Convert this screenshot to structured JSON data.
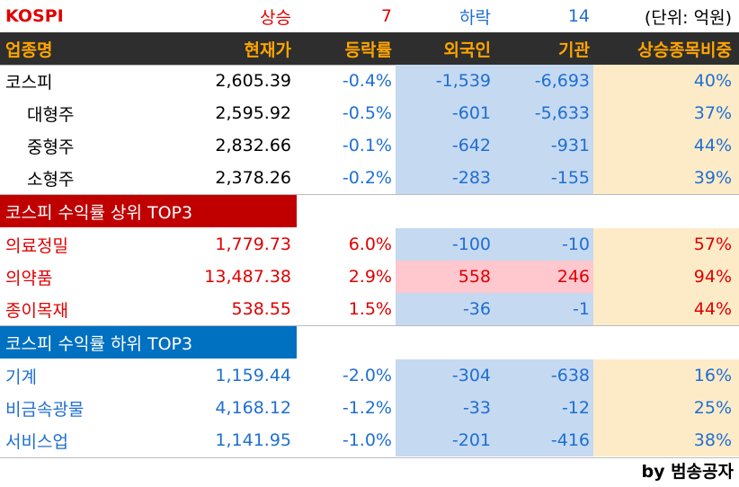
{
  "summary": [
    "KOSPI",
    "상승",
    "7",
    "하락",
    "14",
    "(단위: 억원)"
  ],
  "table": {
    "header": [
      "업종명",
      "현재가",
      "등락률",
      "외국인",
      "기관",
      "상승종목비중"
    ],
    "groups": [
      {
        "rows": [
          [
            "코스피",
            "2,605.39",
            "-0.4%",
            "-1,539",
            "-6,693",
            "40%"
          ],
          [
            "대형주",
            "2,595.92",
            "-0.5%",
            "-601",
            "-5,633",
            "37%"
          ],
          [
            "중형주",
            "2,832.66",
            "-0.1%",
            "-642",
            "-931",
            "44%"
          ],
          [
            "소형주",
            "2,378.26",
            "-0.2%",
            "-283",
            "-155",
            "39%"
          ]
        ]
      },
      {
        "title": "코스피 수익률 상위 TOP3",
        "rows": [
          [
            "의료정밀",
            "1,779.73",
            "6.0%",
            "-100",
            "-10",
            "57%"
          ],
          [
            "의약품",
            "13,487.38",
            "2.9%",
            "558",
            "246",
            "94%"
          ],
          [
            "종이목재",
            "538.55",
            "1.5%",
            "-36",
            "-1",
            "44%"
          ]
        ]
      },
      {
        "title": "코스피 수익률 하위 TOP3",
        "rows": [
          [
            "기계",
            "1,159.44",
            "-2.0%",
            "-304",
            "-638",
            "16%"
          ],
          [
            "비금속광물",
            "4,168.12",
            "-1.2%",
            "-33",
            "-12",
            "25%"
          ],
          [
            "서비스업",
            "1,141.95",
            "-1.0%",
            "-201",
            "-416",
            "38%"
          ]
        ]
      }
    ]
  },
  "footer": "by 범송공자"
}
